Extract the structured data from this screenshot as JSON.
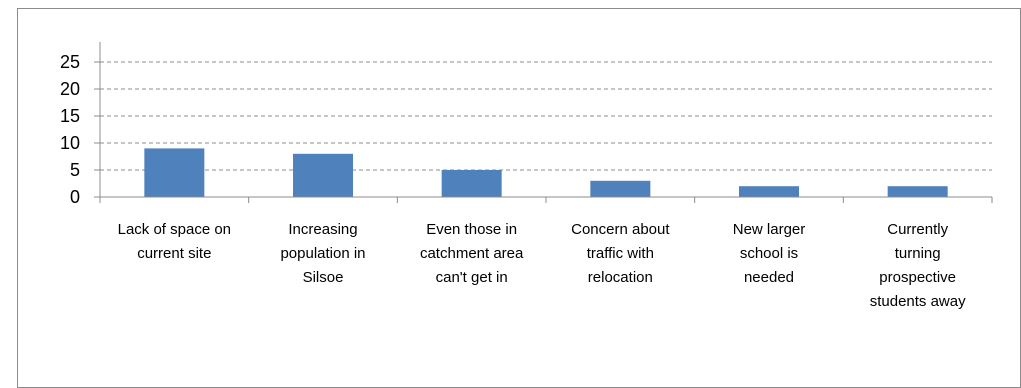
{
  "chart_data": {
    "type": "bar",
    "title": "",
    "xlabel": "",
    "ylabel": "",
    "ylim": [
      0,
      25
    ],
    "yticks": [
      0,
      5,
      10,
      15,
      20,
      25
    ],
    "grid": true,
    "bar_color": "#4f81bd",
    "categories": [
      [
        "Lack of space on",
        "current site"
      ],
      [
        "Increasing",
        "population in",
        "Silsoe"
      ],
      [
        "Even those in",
        "catchment area",
        "can't get in"
      ],
      [
        "Concern about",
        "traffic with",
        "relocation"
      ],
      [
        "New larger",
        "school is",
        "needed"
      ],
      [
        "Currently",
        "turning",
        "prospective",
        "students away"
      ]
    ],
    "values": [
      9,
      8,
      5,
      3,
      2,
      2
    ]
  }
}
